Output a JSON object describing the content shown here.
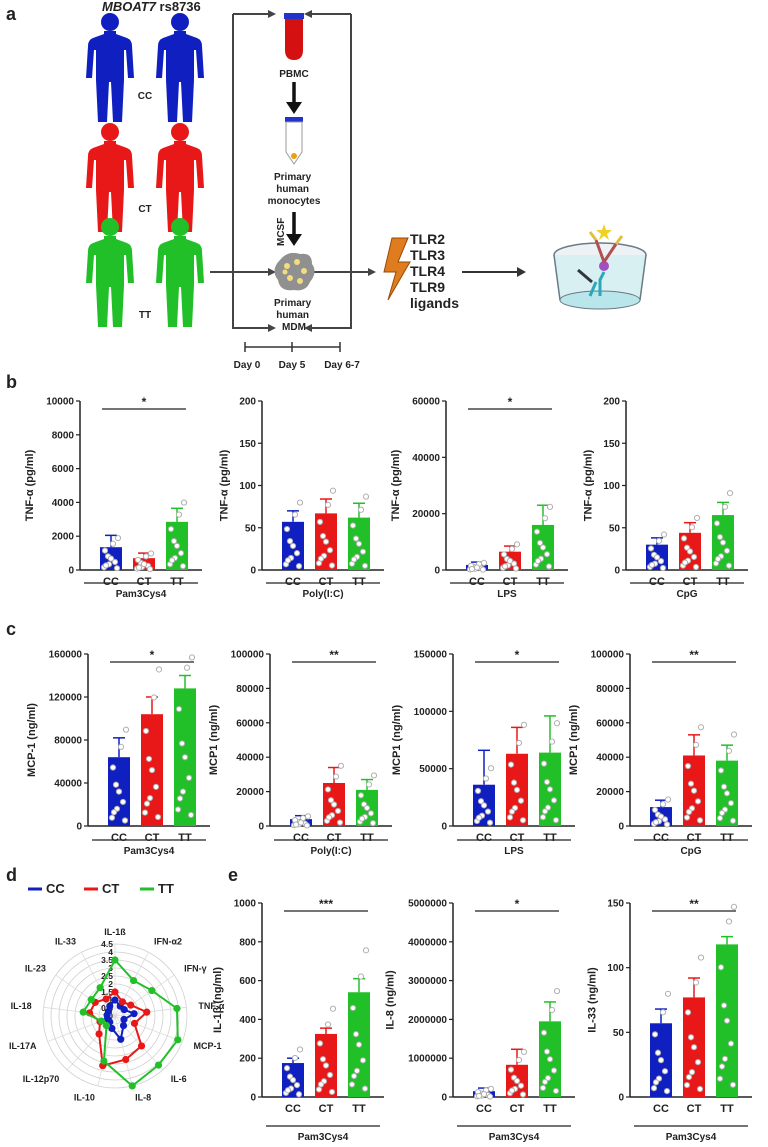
{
  "panel_labels": {
    "a": "a",
    "b": "b",
    "c": "c",
    "d": "d",
    "e": "e"
  },
  "schematic": {
    "gene_italic": "MBOAT7",
    "gene_suffix": " rs8736",
    "genotypes": [
      "CC",
      "CT",
      "TT"
    ],
    "pbmc": "PBMC",
    "monocytes": [
      "Primary",
      "human",
      "monocytes"
    ],
    "mcsf": "MCSF",
    "mdm": [
      "Primary",
      "human",
      "MDM"
    ],
    "days": [
      "Day 0",
      "Day 5",
      "Day 6-7"
    ],
    "ligands": [
      "TLR2",
      "TLR3",
      "TLR4",
      "TLR9",
      "ligands"
    ]
  },
  "colors": {
    "CC": "#1020c0",
    "CT": "#e81818",
    "TT": "#22c028"
  },
  "chart_data": [
    {
      "type": "bar",
      "panel": "b",
      "categories": [
        "CC",
        "CT",
        "TT"
      ],
      "values": [
        1350,
        700,
        2850
      ],
      "errors": [
        700,
        300,
        800
      ],
      "ylabel": "TNF-α (pg/ml)",
      "yticks": [
        "0",
        "2000",
        "4000",
        "6000",
        "8000",
        "10000"
      ],
      "ylim": [
        0,
        10000
      ],
      "condition": "Pam3Cys4",
      "significance": "*",
      "sig_span": [
        0,
        2
      ]
    },
    {
      "type": "bar",
      "panel": "b",
      "categories": [
        "CC",
        "CT",
        "TT"
      ],
      "values": [
        57,
        67,
        62
      ],
      "errors": [
        13,
        17,
        17
      ],
      "ylabel": "TNF-α (pg/ml)",
      "yticks": [
        "0",
        "50",
        "100",
        "150",
        "200"
      ],
      "ylim": [
        0,
        200
      ],
      "condition": "Poly(I:C)"
    },
    {
      "type": "bar",
      "panel": "b",
      "categories": [
        "CC",
        "CT",
        "TT"
      ],
      "values": [
        1800,
        6500,
        16000
      ],
      "errors": [
        1000,
        2000,
        7000
      ],
      "ylabel": "TNF-α (pg/ml)",
      "yticks": [
        "0",
        "20000",
        "40000",
        "60000"
      ],
      "ylim": [
        0,
        60000
      ],
      "condition": "LPS",
      "significance": "*",
      "sig_span": [
        0,
        2
      ]
    },
    {
      "type": "bar",
      "panel": "b",
      "categories": [
        "CC",
        "CT",
        "TT"
      ],
      "values": [
        30,
        44,
        65
      ],
      "errors": [
        8,
        12,
        15
      ],
      "ylabel": "TNF-α (pg/ml)",
      "yticks": [
        "0",
        "50",
        "100",
        "150",
        "200"
      ],
      "ylim": [
        0,
        200
      ],
      "condition": "CpG"
    },
    {
      "type": "bar",
      "panel": "c",
      "categories": [
        "CC",
        "CT",
        "TT"
      ],
      "values": [
        64000,
        104000,
        128000
      ],
      "errors": [
        18000,
        16000,
        12000
      ],
      "ylabel": "MCP-1 (ng/ml)",
      "yticks": [
        "0",
        "40000",
        "80000",
        "120000",
        "160000"
      ],
      "ylim": [
        0,
        160000
      ],
      "condition": "Pam3Cys4",
      "significance": "*",
      "sig_span": [
        0,
        2
      ]
    },
    {
      "type": "bar",
      "panel": "c",
      "categories": [
        "CC",
        "CT",
        "TT"
      ],
      "values": [
        4000,
        25000,
        21000
      ],
      "errors": [
        2000,
        9000,
        6000
      ],
      "ylabel": "MCP1 (ng/ml)",
      "yticks": [
        "0",
        "20000",
        "40000",
        "60000",
        "80000",
        "100000"
      ],
      "ylim": [
        0,
        100000
      ],
      "condition": "Poly(I:C)",
      "significance": "**",
      "sig_span": [
        0,
        2
      ]
    },
    {
      "type": "bar",
      "panel": "c",
      "categories": [
        "CC",
        "CT",
        "TT"
      ],
      "values": [
        36000,
        63000,
        64000
      ],
      "errors": [
        30000,
        23000,
        32000
      ],
      "ylabel": "MCP1 (ng/ml)",
      "yticks": [
        "0",
        "50000",
        "100000",
        "150000"
      ],
      "ylim": [
        0,
        150000
      ],
      "condition": "LPS",
      "significance": "*",
      "sig_span": [
        0,
        2
      ]
    },
    {
      "type": "bar",
      "panel": "c",
      "categories": [
        "CC",
        "CT",
        "TT"
      ],
      "values": [
        11000,
        41000,
        38000
      ],
      "errors": [
        4000,
        12000,
        9000
      ],
      "ylabel": "MCP1 (ng/ml)",
      "yticks": [
        "0",
        "20000",
        "40000",
        "60000",
        "80000",
        "100000"
      ],
      "ylim": [
        0,
        100000
      ],
      "condition": "CpG",
      "significance": "**",
      "sig_span": [
        0,
        2
      ]
    },
    {
      "type": "radar",
      "panel": "d",
      "legend": [
        "CC",
        "CT",
        "TT"
      ],
      "axes": [
        "IL-1ß",
        "IFN-α2",
        "IFN-γ",
        "TNF-α",
        "MCP-1",
        "IL-6",
        "IL-8",
        "IL-10",
        "IL-12p70",
        "IL-17A",
        "IL-18",
        "IL-23",
        "IL-33"
      ],
      "rticks": [
        "0",
        "0.5",
        "1",
        "1.5",
        "2",
        "2.5",
        "3",
        "3.5",
        "4",
        "4.5"
      ],
      "rmax": 4.5,
      "series": [
        {
          "name": "CC",
          "values": [
            1,
            0.7,
            0.7,
            1.2,
            0.6,
            0.8,
            1.5,
            0.8,
            0.5,
            0.5,
            0.5,
            0.5,
            0.7
          ]
        },
        {
          "name": "CT",
          "values": [
            1.5,
            1,
            1.2,
            2,
            1.3,
            2.5,
            2.8,
            3.2,
            1.5,
            1,
            1.6,
            1.5,
            1.2
          ]
        },
        {
          "name": "TT",
          "values": [
            3.5,
            2.5,
            2.8,
            3.9,
            4.2,
            4.1,
            4.5,
            2.9,
            0.8,
            0.9,
            2,
            1.8,
            2
          ]
        }
      ]
    },
    {
      "type": "bar",
      "panel": "e",
      "categories": [
        "CC",
        "CT",
        "TT"
      ],
      "values": [
        175,
        325,
        540
      ],
      "errors": [
        25,
        30,
        70
      ],
      "ylabel": "IL-1β (ng/ml)",
      "yticks": [
        "0",
        "200",
        "400",
        "600",
        "800",
        "1000"
      ],
      "ylim": [
        0,
        1000
      ],
      "condition": "Pam3Cys4",
      "significance": "***",
      "sig_span": [
        0,
        2
      ]
    },
    {
      "type": "bar",
      "panel": "e",
      "categories": [
        "CC",
        "CT",
        "TT"
      ],
      "values": [
        150000,
        830000,
        1950000
      ],
      "errors": [
        80000,
        400000,
        500000
      ],
      "ylabel": "IL-8 (ng/ml)",
      "yticks": [
        "0",
        "1000000",
        "2000000",
        "3000000",
        "4000000",
        "5000000"
      ],
      "ylim": [
        0,
        5000000
      ],
      "condition": "Pam3Cys4",
      "significance": "*",
      "sig_span": [
        0,
        2
      ]
    },
    {
      "type": "bar",
      "panel": "e",
      "categories": [
        "CC",
        "CT",
        "TT"
      ],
      "values": [
        57,
        77,
        118
      ],
      "errors": [
        11,
        15,
        6
      ],
      "ylabel": "IL-33 (ng/ml)",
      "yticks": [
        "0",
        "50",
        "100",
        "150"
      ],
      "ylim": [
        0,
        150
      ],
      "condition": "Pam3Cys4",
      "significance": "**",
      "sig_span": [
        0,
        2
      ]
    }
  ]
}
